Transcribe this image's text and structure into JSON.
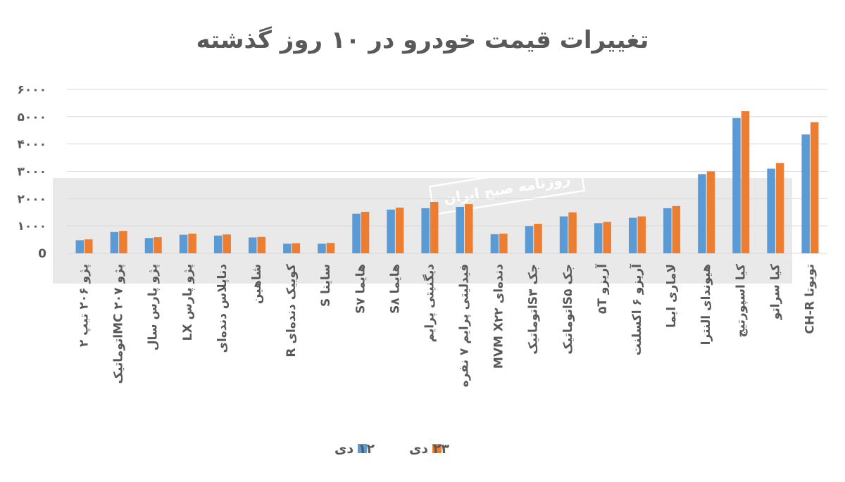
{
  "chart_data": {
    "type": "bar",
    "title": "تغییرات قیمت خودرو در ۱۰ روز گذشته",
    "xlabel": "",
    "ylabel": "",
    "ylim": [
      0,
      6000
    ],
    "yticks": [
      0,
      1000,
      2000,
      3000,
      4000,
      5000,
      6000
    ],
    "ytick_labels": [
      "0",
      "۱۰۰۰",
      "۲۰۰۰",
      "۳۰۰۰",
      "۴۰۰۰",
      "۵۰۰۰",
      "۶۰۰۰"
    ],
    "grid": true,
    "legend_position": "bottom",
    "categories": [
      "تویوتا CH-R",
      "کیا سراتو",
      "کیا اسپورتیج",
      "هیوندای النترا",
      "لاماری ایما",
      "آریزو ۶ اکسلنت",
      "آریزو ۵T",
      "جک S۵اتوماتیک",
      "جک S۳اتوماتیک",
      "دنده‌ای MVM X۲۲",
      "فیدلیتی پرایم ۷ نفره",
      "دیگنیتی پرایم",
      "هایما S۸",
      "هایما S۷",
      "ساینا S",
      "کوییک دنده‌ای R",
      "شاهین",
      "دناپلاس دنده‌ای",
      "پژو پارس LX",
      "پژو پارس سال",
      "پژو ۲۰۷ MCاتوماتیک",
      "پژو ۲۰۶ تیپ ۲"
    ],
    "series": [
      {
        "name": "۱۲ دی",
        "color": "#5B9BD5",
        "values": [
          4350,
          3100,
          4950,
          2900,
          1650,
          1300,
          1100,
          1350,
          1000,
          700,
          1700,
          1650,
          1600,
          1450,
          350,
          350,
          580,
          650,
          680,
          560,
          780,
          480
        ]
      },
      {
        "name": "۲۳ دی",
        "color": "#ED7D31",
        "values": [
          4800,
          3300,
          5200,
          3000,
          1730,
          1350,
          1150,
          1500,
          1080,
          720,
          1800,
          1880,
          1670,
          1520,
          380,
          370,
          600,
          690,
          720,
          590,
          820,
          510
        ]
      }
    ]
  },
  "watermark": {
    "caption": "روزنامه صبح ایران"
  },
  "colors": {
    "text": "#595959",
    "grid": "#D9D9D9",
    "watermark_band": "#E0E0E0"
  }
}
